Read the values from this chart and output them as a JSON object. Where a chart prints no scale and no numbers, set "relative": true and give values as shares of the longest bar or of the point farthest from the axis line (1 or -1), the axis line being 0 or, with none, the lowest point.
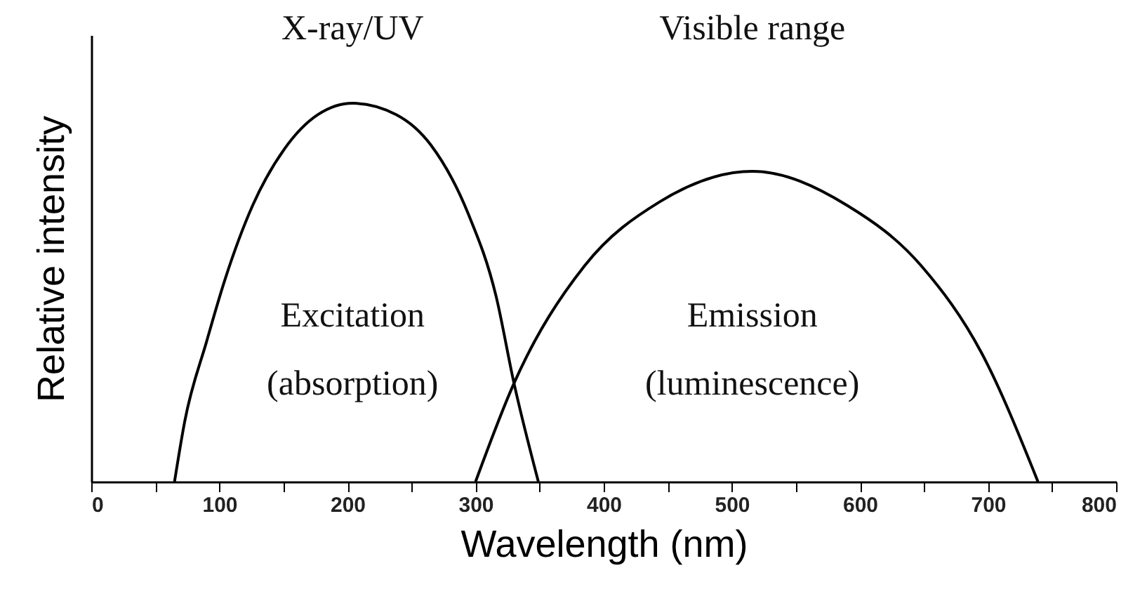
{
  "chart_data": {
    "type": "line",
    "relative": true,
    "xlabel": "Wavelength (nm)",
    "ylabel": "Relative intensity",
    "xlim": [
      0,
      800
    ],
    "xticks": [
      0,
      {
        "value": 50,
        "label": null
      },
      100,
      {
        "value": 150,
        "label": null
      },
      200,
      {
        "value": 250,
        "label": null
      },
      300,
      {
        "value": 350,
        "label": null
      },
      400,
      {
        "value": 450,
        "label": null
      },
      500,
      {
        "value": 550,
        "label": null
      },
      600,
      {
        "value": 650,
        "label": null
      },
      700,
      {
        "value": 750,
        "label": null
      },
      800
    ],
    "annotations": [
      "X-ray/UV",
      "Visible range"
    ],
    "grid": false,
    "marker": "none",
    "line_style": "solid",
    "series": [
      {
        "name": "Excitation (absorption)",
        "color": "#000000",
        "x": [
          65,
          73,
          90,
          104,
          126,
          151,
          177,
          204,
          238,
          265,
          294,
          316,
          330,
          349
        ],
        "values": [
          0,
          0.16,
          0.37,
          0.53,
          0.73,
          0.88,
          0.97,
          1.0,
          0.97,
          0.89,
          0.71,
          0.49,
          0.26,
          0
        ]
      },
      {
        "name": "Emission (luminescence)",
        "color": "#000000",
        "x": [
          300,
          330,
          385,
          444,
          516,
          590,
          648,
          695,
          739
        ],
        "values": [
          0,
          0.26,
          0.57,
          0.74,
          0.82,
          0.73,
          0.57,
          0.34,
          0
        ]
      }
    ]
  }
}
